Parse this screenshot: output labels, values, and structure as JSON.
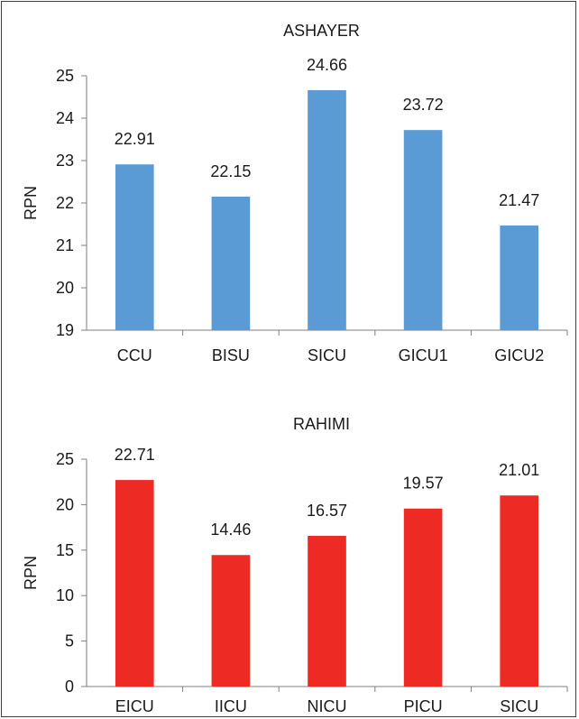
{
  "chart_data": [
    {
      "type": "bar",
      "title": "ASHAYER",
      "ylabel": "RPN",
      "xlabel": "",
      "categories": [
        "CCU",
        "BISU",
        "SICU",
        "GICU1",
        "GICU2"
      ],
      "values": [
        22.91,
        22.15,
        24.66,
        23.72,
        21.47
      ],
      "value_labels": [
        "22.91",
        "22.15",
        "24.66",
        "23.72",
        "21.47"
      ],
      "ylim": [
        19,
        25
      ],
      "yticks": [
        19,
        20,
        21,
        22,
        23,
        24,
        25
      ],
      "color": "#5b9bd5",
      "grid": false,
      "legend": "none"
    },
    {
      "type": "bar",
      "title": "RAHIMI",
      "ylabel": "RPN",
      "xlabel": "",
      "categories": [
        "EICU",
        "IICU",
        "NICU",
        "PICU",
        "SICU"
      ],
      "values": [
        22.71,
        14.46,
        16.57,
        19.57,
        21.01
      ],
      "value_labels": [
        "22.71",
        "14.46",
        "16.57",
        "19.57",
        "21.01"
      ],
      "ylim": [
        0,
        25
      ],
      "yticks": [
        0,
        5,
        10,
        15,
        20,
        25
      ],
      "color": "#ee2a24",
      "grid": false,
      "legend": "none"
    }
  ]
}
